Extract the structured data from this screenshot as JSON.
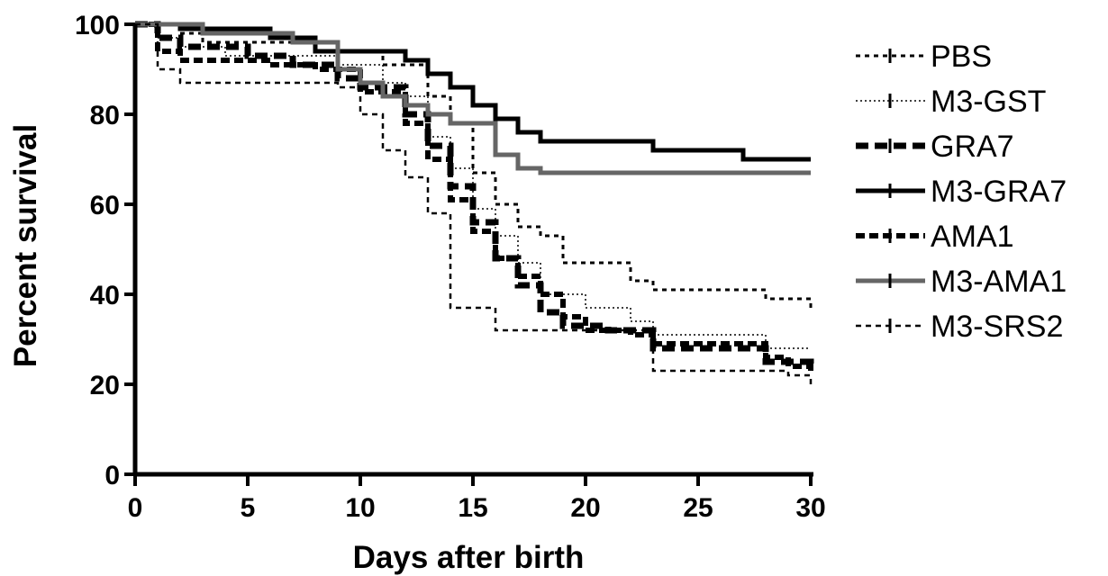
{
  "chart_data": {
    "type": "line",
    "subtype": "step",
    "xlabel": "Days after birth",
    "ylabel": "Percent survival",
    "xlim": [
      0,
      30
    ],
    "ylim": [
      0,
      100
    ],
    "xticks": [
      0,
      5,
      10,
      15,
      20,
      25,
      30
    ],
    "yticks": [
      0,
      20,
      40,
      60,
      80,
      100
    ],
    "grid": false,
    "legend_position": "right",
    "series": [
      {
        "name": "PBS",
        "line_style": "dotted-dense",
        "color": "#000000",
        "points": [
          [
            0,
            100
          ],
          [
            2,
            98
          ],
          [
            3,
            96
          ],
          [
            8,
            94
          ],
          [
            11,
            91
          ],
          [
            13,
            84
          ],
          [
            14,
            78
          ],
          [
            15,
            67
          ],
          [
            16,
            60
          ],
          [
            17,
            55
          ],
          [
            18,
            53
          ],
          [
            19,
            47
          ],
          [
            22,
            43
          ],
          [
            23,
            41
          ],
          [
            28,
            39
          ],
          [
            30,
            36
          ]
        ]
      },
      {
        "name": "M3-GST",
        "line_style": "thin-dotted",
        "color": "#000000",
        "points": [
          [
            0,
            100
          ],
          [
            1,
            97
          ],
          [
            2,
            95
          ],
          [
            4,
            93
          ],
          [
            9,
            91
          ],
          [
            11,
            87
          ],
          [
            12,
            84
          ],
          [
            13,
            75
          ],
          [
            14,
            68
          ],
          [
            15,
            59
          ],
          [
            16,
            53
          ],
          [
            17,
            47
          ],
          [
            18,
            40
          ],
          [
            20,
            37
          ],
          [
            22,
            34
          ],
          [
            23,
            31
          ],
          [
            28,
            28
          ],
          [
            30,
            28
          ]
        ]
      },
      {
        "name": "GRA7",
        "line_style": "thick-dashed",
        "color": "#000000",
        "points": [
          [
            0,
            100
          ],
          [
            1,
            97
          ],
          [
            2,
            95
          ],
          [
            5,
            93
          ],
          [
            7,
            91
          ],
          [
            9,
            88
          ],
          [
            10,
            86
          ],
          [
            12,
            80
          ],
          [
            13,
            73
          ],
          [
            14,
            64
          ],
          [
            15,
            56
          ],
          [
            16,
            48
          ],
          [
            17,
            42
          ],
          [
            18,
            36
          ],
          [
            19,
            33
          ],
          [
            21,
            32
          ],
          [
            23,
            28
          ],
          [
            28,
            25
          ],
          [
            30,
            24
          ]
        ]
      },
      {
        "name": "M3-GRA7",
        "line_style": "solid-thick",
        "color": "#000000",
        "points": [
          [
            0,
            100
          ],
          [
            2,
            99
          ],
          [
            6,
            97
          ],
          [
            8,
            94
          ],
          [
            12,
            92
          ],
          [
            13,
            89
          ],
          [
            14,
            86
          ],
          [
            15,
            82
          ],
          [
            16,
            79
          ],
          [
            17,
            76
          ],
          [
            18,
            74
          ],
          [
            23,
            72
          ],
          [
            27,
            70
          ],
          [
            30,
            70
          ]
        ]
      },
      {
        "name": "AMA1",
        "line_style": "thick-dotted",
        "color": "#000000",
        "points": [
          [
            0,
            100
          ],
          [
            1,
            94
          ],
          [
            2,
            92
          ],
          [
            6,
            91
          ],
          [
            8,
            90
          ],
          [
            10,
            85
          ],
          [
            12,
            78
          ],
          [
            13,
            70
          ],
          [
            14,
            61
          ],
          [
            15,
            54
          ],
          [
            16,
            48
          ],
          [
            17,
            44
          ],
          [
            18,
            40
          ],
          [
            19,
            35
          ],
          [
            20,
            32
          ],
          [
            22,
            31
          ],
          [
            23,
            29
          ],
          [
            28,
            26
          ],
          [
            29,
            24
          ],
          [
            30,
            22
          ]
        ]
      },
      {
        "name": "M3-AMA1",
        "line_style": "solid-gray",
        "color": "#666666",
        "points": [
          [
            0,
            100
          ],
          [
            3,
            98
          ],
          [
            7,
            96
          ],
          [
            9,
            90
          ],
          [
            10,
            87
          ],
          [
            11,
            84
          ],
          [
            12,
            82
          ],
          [
            13,
            80
          ],
          [
            14,
            78
          ],
          [
            16,
            71
          ],
          [
            17,
            68
          ],
          [
            18,
            67
          ],
          [
            30,
            67
          ]
        ]
      },
      {
        "name": "M3-SRS2",
        "line_style": "short-dashed",
        "color": "#000000",
        "points": [
          [
            0,
            100
          ],
          [
            1,
            90
          ],
          [
            2,
            87
          ],
          [
            9,
            86
          ],
          [
            10,
            80
          ],
          [
            11,
            72
          ],
          [
            12,
            66
          ],
          [
            13,
            58
          ],
          [
            14,
            37
          ],
          [
            16,
            32
          ],
          [
            23,
            23
          ],
          [
            28,
            23
          ],
          [
            29,
            22
          ],
          [
            30,
            20
          ]
        ]
      }
    ]
  }
}
